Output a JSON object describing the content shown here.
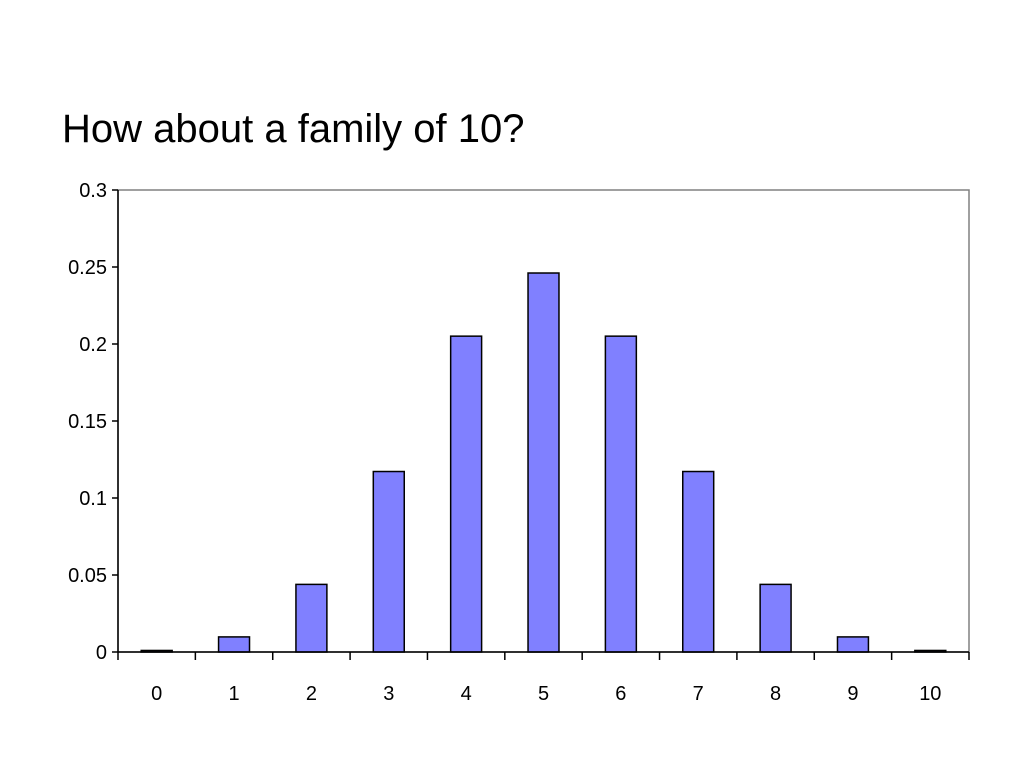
{
  "slide": {
    "title": "How about a family of 10?"
  },
  "chart_data": {
    "type": "bar",
    "title": "",
    "xlabel": "",
    "ylabel": "",
    "categories": [
      "0",
      "1",
      "2",
      "3",
      "4",
      "5",
      "6",
      "7",
      "8",
      "9",
      "10"
    ],
    "values": [
      0.001,
      0.0098,
      0.0439,
      0.1172,
      0.2051,
      0.2461,
      0.2051,
      0.1172,
      0.0439,
      0.0098,
      0.001
    ],
    "ylim": [
      0,
      0.3
    ],
    "yticks": [
      "0",
      "0.05",
      "0.1",
      "0.15",
      "0.2",
      "0.25",
      "0.3"
    ],
    "ytick_values": [
      0,
      0.05,
      0.1,
      0.15,
      0.2,
      0.25,
      0.3
    ],
    "grid": false,
    "legend": "none",
    "bar_color": "#8080FF",
    "bar_border_color": "#000000",
    "axis_color": "#000000",
    "frame_color": "#808080"
  }
}
